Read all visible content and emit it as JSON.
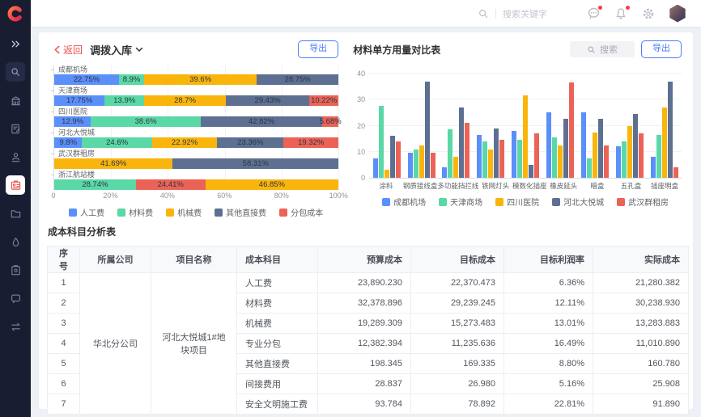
{
  "palette": {
    "blue": "#5B8FF9",
    "green": "#5AD8A6",
    "yellow": "#FAB50C",
    "slate": "#5D7092",
    "red": "#EB6357"
  },
  "topbar": {
    "search_placeholder": "搜索关键字"
  },
  "sidebar": {
    "icons": [
      "expand-icon",
      "search-icon",
      "building-icon",
      "document-edit-icon",
      "user-audit-icon",
      "badge-icon",
      "folder-icon",
      "drop-icon",
      "clipboard-settings-icon",
      "chat-icon",
      "transfer-icon"
    ]
  },
  "toolbar": {
    "back_label": "返回",
    "title": "调拨入库",
    "export_label": "导出"
  },
  "right_panel": {
    "title": "材料单方用量对比表",
    "search_placeholder": "搜索",
    "export_label": "导出"
  },
  "chart_data": [
    {
      "id": "cost-structure",
      "type": "bar",
      "subtype": "horizontal-stacked-percent",
      "x_ticks": [
        "0",
        "20%",
        "40%",
        "60%",
        "80%",
        "100%"
      ],
      "xlim": [
        0,
        100
      ],
      "grid": true,
      "legend_position": "bottom",
      "series": [
        {
          "name": "人工费",
          "color": "blue"
        },
        {
          "name": "材料费",
          "color": "green"
        },
        {
          "name": "机械费",
          "color": "yellow"
        },
        {
          "name": "其他直接费",
          "color": "slate"
        },
        {
          "name": "分包成本",
          "color": "red"
        }
      ],
      "rows": [
        {
          "category": "成都机场",
          "segments": [
            {
              "series": "人工费",
              "value": 22.75,
              "label": "22.75%"
            },
            {
              "series": "材料费",
              "value": 8.9,
              "label": "8.9%"
            },
            {
              "series": "机械费",
              "value": 39.6,
              "label": "39.6%"
            },
            {
              "series": "其他直接费",
              "value": 28.75,
              "label": "28.75%"
            }
          ]
        },
        {
          "category": "天津商场",
          "segments": [
            {
              "series": "人工费",
              "value": 17.75,
              "label": "17.75%"
            },
            {
              "series": "材料费",
              "value": 13.9,
              "label": "13.9%"
            },
            {
              "series": "机械费",
              "value": 28.7,
              "label": "28.7%"
            },
            {
              "series": "其他直接费",
              "value": 29.43,
              "label": "29.43%"
            },
            {
              "series": "分包成本",
              "value": 10.22,
              "label": "10.22%"
            }
          ]
        },
        {
          "category": "四川医院",
          "segments": [
            {
              "series": "人工费",
              "value": 12.9,
              "label": "12.9%"
            },
            {
              "series": "材料费",
              "value": 38.6,
              "label": "38.6%"
            },
            {
              "series": "其他直接费",
              "value": 42.82,
              "label": "42.82%"
            },
            {
              "series": "分包成本",
              "value": 5.68,
              "label": "5.68%"
            }
          ]
        },
        {
          "category": "河北大悦城",
          "segments": [
            {
              "series": "人工费",
              "value": 9.8,
              "label": "9.8%"
            },
            {
              "series": "材料费",
              "value": 24.6,
              "label": "24.6%"
            },
            {
              "series": "机械费",
              "value": 22.92,
              "label": "22.92%"
            },
            {
              "series": "其他直接费",
              "value": 23.36,
              "label": "23.36%"
            },
            {
              "series": "分包成本",
              "value": 19.32,
              "label": "19.32%"
            }
          ]
        },
        {
          "category": "武汉群租房",
          "segments": [
            {
              "series": "机械费",
              "value": 41.69,
              "label": "41.69%"
            },
            {
              "series": "其他直接费",
              "value": 58.31,
              "label": "58.31%"
            }
          ]
        },
        {
          "category": "浙江航站楼",
          "segments": [
            {
              "series": "材料费",
              "value": 28.74,
              "label": "28.74%"
            },
            {
              "series": "分包成本",
              "value": 24.41,
              "label": "24.41%"
            },
            {
              "series": "机械费",
              "value": 46.85,
              "label": "46.85%"
            }
          ]
        }
      ]
    },
    {
      "id": "material-usage",
      "type": "bar",
      "subtype": "grouped-vertical",
      "title": "材料单方用量对比表",
      "categories": [
        "涂料",
        "钢质接线盒",
        "多功能挡拦线",
        "铁网灯头",
        "模数化插座",
        "橡皮延头",
        "暗盒",
        "五孔盒",
        "插座明盒"
      ],
      "series": [
        {
          "name": "成都机场",
          "color": "blue",
          "values": [
            7.5,
            9.5,
            4,
            16.5,
            18,
            25,
            25,
            12,
            8
          ]
        },
        {
          "name": "天津商场",
          "color": "green",
          "values": [
            27.5,
            11,
            18.5,
            14,
            14.5,
            15.5,
            7.5,
            14,
            16.5
          ]
        },
        {
          "name": "四川医院",
          "color": "yellow",
          "values": [
            3,
            12.5,
            8,
            11,
            31.5,
            12.5,
            17.5,
            20,
            27
          ]
        },
        {
          "name": "河北大悦城",
          "color": "slate",
          "values": [
            16,
            37,
            27,
            19,
            5,
            22.5,
            22.5,
            24.5,
            37
          ]
        },
        {
          "name": "武汉群租房",
          "color": "red",
          "values": [
            14,
            9.5,
            21,
            14.5,
            17,
            36.5,
            12.5,
            17,
            4
          ]
        }
      ],
      "ylim": [
        0,
        40
      ],
      "y_ticks": [
        0,
        10,
        20,
        30,
        40
      ],
      "grid": true,
      "legend_position": "bottom"
    }
  ],
  "table": {
    "title": "成本科目分析表",
    "columns": [
      "序号",
      "所属公司",
      "项目名称",
      "成本科目",
      "预算成本",
      "目标成本",
      "目标利润率",
      "实际成本"
    ],
    "company": "华北分公司",
    "project": "河北大悦城1#地块项目",
    "rows": [
      {
        "index": "1",
        "subject": "人工费",
        "budget": "23,890.230",
        "target": "22,370.473",
        "margin": "6.36%",
        "actual": "21,280.382"
      },
      {
        "index": "2",
        "subject": "材料费",
        "budget": "32,378.896",
        "target": "29,239.245",
        "margin": "12.11%",
        "actual": "30,238.930"
      },
      {
        "index": "3",
        "subject": "机械费",
        "budget": "19,289.309",
        "target": "15,273.483",
        "margin": "13.01%",
        "actual": "13,283.883"
      },
      {
        "index": "4",
        "subject": "专业分包",
        "budget": "12,382.394",
        "target": "11,235.636",
        "margin": "16.49%",
        "actual": "11,010.890"
      },
      {
        "index": "5",
        "subject": "其他直接费",
        "budget": "198.345",
        "target": "169.335",
        "margin": "8.80%",
        "actual": "160.780"
      },
      {
        "index": "6",
        "subject": "间接费用",
        "budget": "28.837",
        "target": "26.980",
        "margin": "5.16%",
        "actual": "25.908"
      },
      {
        "index": "7",
        "subject": "安全文明施工费",
        "budget": "93.784",
        "target": "78.892",
        "margin": "22.81%",
        "actual": "91.890"
      }
    ]
  }
}
